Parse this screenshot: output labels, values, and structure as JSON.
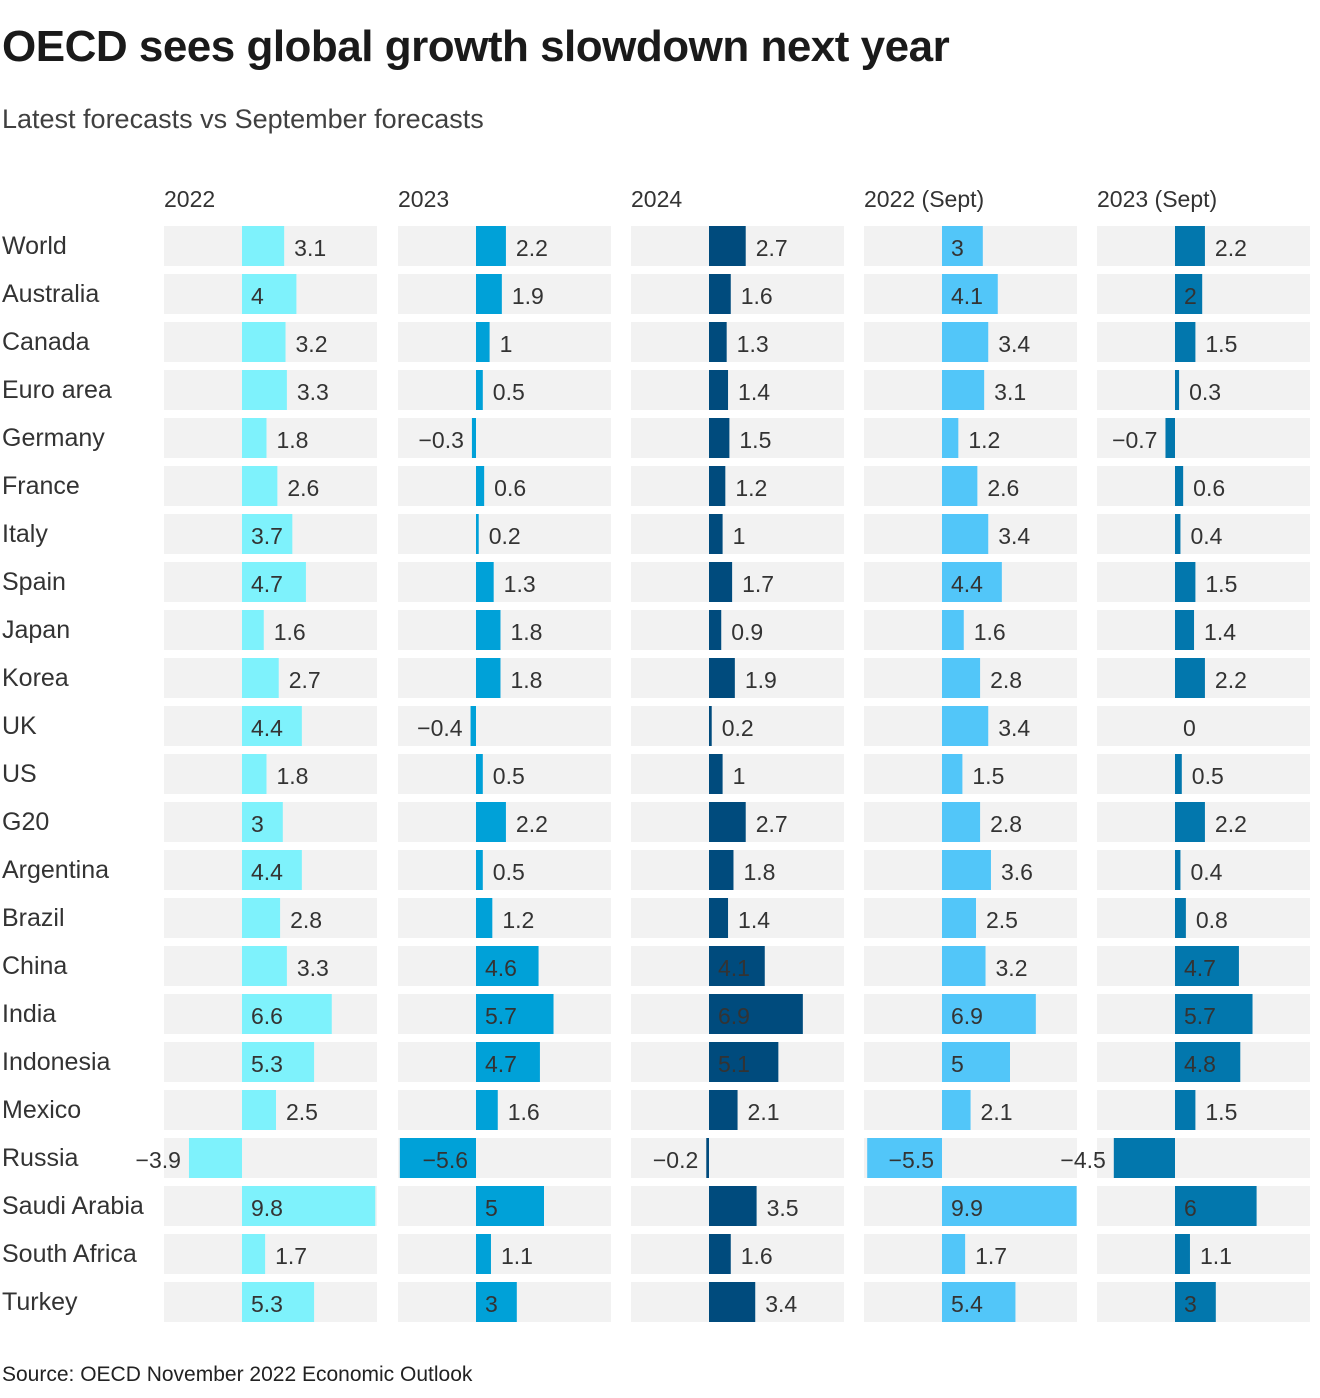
{
  "title": "OECD sees global growth slowdown next year",
  "subtitle": "Latest forecasts vs September forecasts",
  "source": "Source: OECD November 2022 Economic Outlook",
  "chart_data": {
    "type": "bar",
    "orientation": "horizontal",
    "layout": "small-multiples",
    "categories": [
      "World",
      "Australia",
      "Canada",
      "Euro area",
      "Germany",
      "France",
      "Italy",
      "Spain",
      "Japan",
      "Korea",
      "UK",
      "US",
      "G20",
      "Argentina",
      "Brazil",
      "China",
      "India",
      "Indonesia",
      "Mexico",
      "Russia",
      "Saudi Arabia",
      "South Africa",
      "Turkey"
    ],
    "xlim": [
      -5.6,
      10
    ],
    "grid": false,
    "series": [
      {
        "name": "2022",
        "color": "#7ef2fc",
        "values": [
          3.1,
          4,
          3.2,
          3.3,
          1.8,
          2.6,
          3.7,
          4.7,
          1.6,
          2.7,
          4.4,
          1.8,
          3,
          4.4,
          2.8,
          3.3,
          6.6,
          5.3,
          2.5,
          -3.9,
          9.8,
          1.7,
          5.3
        ]
      },
      {
        "name": "2023",
        "color": "#00a1d8",
        "values": [
          2.2,
          1.9,
          1,
          0.5,
          -0.3,
          0.6,
          0.2,
          1.3,
          1.8,
          1.8,
          -0.4,
          0.5,
          2.2,
          0.5,
          1.2,
          4.6,
          5.7,
          4.7,
          1.6,
          -5.6,
          5,
          1.1,
          3
        ]
      },
      {
        "name": "2024",
        "color": "#004b7d",
        "values": [
          2.7,
          1.6,
          1.3,
          1.4,
          1.5,
          1.2,
          1,
          1.7,
          0.9,
          1.9,
          0.2,
          1,
          2.7,
          1.8,
          1.4,
          4.1,
          6.9,
          5.1,
          2.1,
          -0.2,
          3.5,
          1.6,
          3.4
        ]
      },
      {
        "name": "2022 (Sept)",
        "color": "#52c6f9",
        "values": [
          3,
          4.1,
          3.4,
          3.1,
          1.2,
          2.6,
          3.4,
          4.4,
          1.6,
          2.8,
          3.4,
          1.5,
          2.8,
          3.6,
          2.5,
          3.2,
          6.9,
          5,
          2.1,
          -5.5,
          9.9,
          1.7,
          5.4
        ]
      },
      {
        "name": "2023 (Sept)",
        "color": "#0277ad",
        "values": [
          2.2,
          2,
          1.5,
          0.3,
          -0.7,
          0.6,
          0.4,
          1.5,
          1.4,
          2.2,
          0,
          0.5,
          2.2,
          0.4,
          0.8,
          4.7,
          5.7,
          4.8,
          1.5,
          -4.5,
          6,
          1.1,
          3
        ]
      }
    ],
    "panel_background": "#f2f2f2"
  }
}
